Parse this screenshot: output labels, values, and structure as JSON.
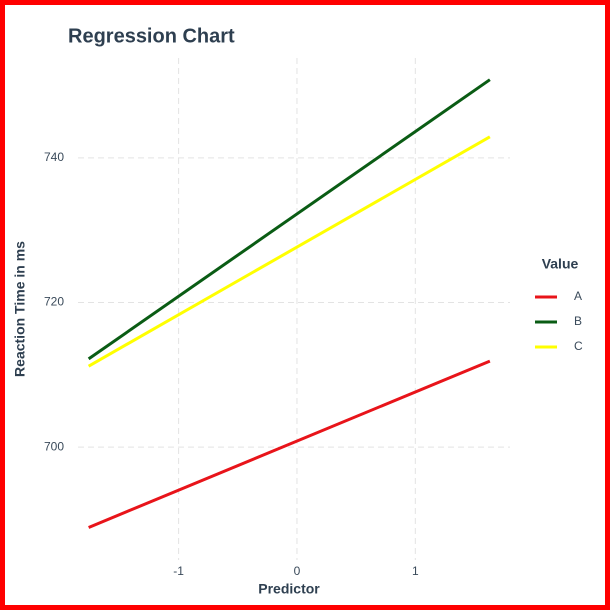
{
  "chart_data": {
    "type": "line",
    "title": "Regression Chart",
    "x_label": "Predictor",
    "y_label": "Reaction Time in ms",
    "x": [
      -1.76,
      1.63
    ],
    "series": [
      {
        "name": "A",
        "color": "#e8141a",
        "values": [
          688.9,
          711.9
        ]
      },
      {
        "name": "B",
        "color": "#0a5c14",
        "values": [
          712.2,
          750.8
        ]
      },
      {
        "name": "C",
        "color": "#ffff00",
        "values": [
          711.2,
          742.9
        ]
      }
    ],
    "legend_title": "Value",
    "legend": "right",
    "xlim": [
      -1.85,
      1.8
    ],
    "xticks": [
      -1,
      0,
      1
    ],
    "ylim": [
      684.4,
      753.8
    ],
    "yticks": [
      700,
      720,
      740
    ],
    "grid": true
  }
}
